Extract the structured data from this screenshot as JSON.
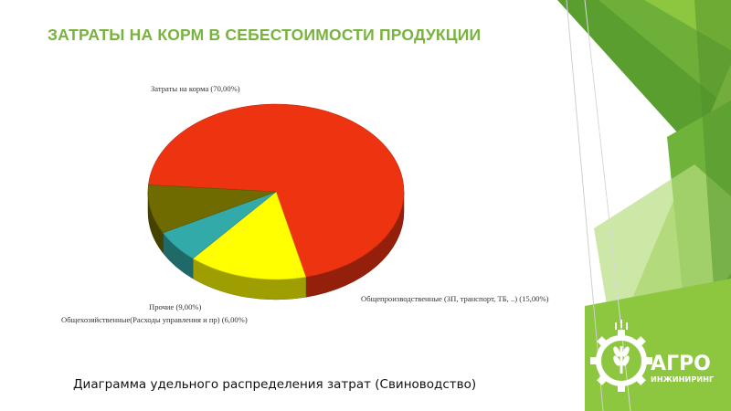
{
  "title": "ЗАТРАТЫ НА КОРМ В СЕБЕСТОИМОСТИ ПРОДУКЦИИ",
  "caption": "Диаграмма удельного распределения затрат (Свиноводство)",
  "logo": {
    "line1": "АГРО",
    "line2": "ИНЖИНИРИНГ",
    "icon": "wheat-gear-icon"
  },
  "colors": {
    "title": "#78b33e",
    "feed": "#ee3311",
    "production": "#ffff00",
    "admin": "#33aaaa",
    "other": "#6f6b00",
    "decor_green": "#8dc63f"
  },
  "chart_data": {
    "type": "pie",
    "style": "3d",
    "categories": [
      "Затраты на корма",
      "Общепроизводственные (ЗП, транспорт, ТБ, ..)",
      "Общехозяйственные(Расходы управления и пр)",
      "Прочие"
    ],
    "values": [
      70,
      15,
      6,
      9
    ],
    "labels": [
      "Затраты на корма (70,00%)",
      "Общепроизводственные (ЗП, транспорт, ТБ, ..) (15,00%)",
      "Общехозяйственные(Расходы управления и пр) (6,00%)",
      "Прочие (9,00%)"
    ],
    "legend": "none"
  }
}
